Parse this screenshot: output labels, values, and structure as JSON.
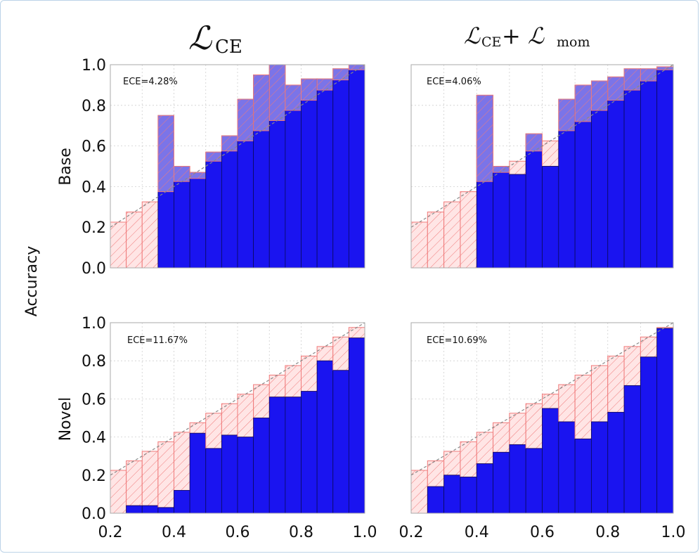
{
  "figure": {
    "ylabel": "Accuracy",
    "columns": [
      {
        "title_main": "ℒ",
        "title_sub": "CE",
        "title_tail": ""
      },
      {
        "title_main": "ℒ",
        "title_sub": "CE",
        "title_tail": " + ℒ",
        "title_sub2": "mom"
      }
    ],
    "rows": [
      "Base",
      "Novel"
    ],
    "colors": {
      "acc_fill": "#1a14f0",
      "gap_over": "#7b74e8",
      "gap_under": "#ffe5e5",
      "gap_stroke": "#f07a7a",
      "diag": "#888888",
      "grid": "#cfcfcf"
    }
  },
  "chart_data": [
    {
      "type": "bar",
      "title": "ℒCE",
      "row": "Base",
      "ece_label": "ECE=4.28%",
      "xlim": [
        0.2,
        1.0
      ],
      "ylim": [
        0.0,
        1.0
      ],
      "xticks": [
        "0.2",
        "0.4",
        "0.6",
        "0.8",
        "1.0"
      ],
      "yticks": [
        "0.0",
        "0.2",
        "0.4",
        "0.6",
        "0.8",
        "1.0"
      ],
      "bin_width": 0.05,
      "bin_starts": [
        0.2,
        0.25,
        0.3,
        0.35,
        0.4,
        0.45,
        0.5,
        0.55,
        0.6,
        0.65,
        0.7,
        0.75,
        0.8,
        0.85,
        0.9,
        0.95
      ],
      "accuracy": [
        0.0,
        0.0,
        0.0,
        0.75,
        0.5,
        0.47,
        0.57,
        0.65,
        0.83,
        0.95,
        1.0,
        0.9,
        0.93,
        0.93,
        0.98,
        1.0
      ],
      "confidence": [
        0.225,
        0.275,
        0.325,
        0.375,
        0.425,
        0.44,
        0.525,
        0.575,
        0.625,
        0.675,
        0.725,
        0.775,
        0.825,
        0.875,
        0.925,
        0.975
      ]
    },
    {
      "type": "bar",
      "title": "ℒCE + ℒmom",
      "row": "Base",
      "ece_label": "ECE=4.06%",
      "xlim": [
        0.2,
        1.0
      ],
      "ylim": [
        0.0,
        1.0
      ],
      "xticks": [
        "0.2",
        "0.4",
        "0.6",
        "0.8",
        "1.0"
      ],
      "yticks": [
        "0.0",
        "0.2",
        "0.4",
        "0.6",
        "0.8",
        "1.0"
      ],
      "bin_width": 0.05,
      "bin_starts": [
        0.2,
        0.25,
        0.3,
        0.35,
        0.4,
        0.45,
        0.5,
        0.55,
        0.6,
        0.65,
        0.7,
        0.75,
        0.8,
        0.85,
        0.9,
        0.95
      ],
      "accuracy": [
        0.0,
        0.0,
        0.0,
        0.0,
        0.85,
        0.5,
        0.46,
        0.66,
        0.5,
        0.83,
        0.9,
        0.92,
        0.94,
        0.98,
        0.98,
        0.99
      ],
      "confidence": [
        0.225,
        0.275,
        0.325,
        0.375,
        0.425,
        0.47,
        0.525,
        0.575,
        0.625,
        0.675,
        0.72,
        0.775,
        0.825,
        0.875,
        0.92,
        0.975
      ]
    },
    {
      "type": "bar",
      "title": "ℒCE",
      "row": "Novel",
      "ece_label": "ECE=11.67%",
      "xlim": [
        0.2,
        1.0
      ],
      "ylim": [
        0.0,
        1.0
      ],
      "xticks": [
        "0.2",
        "0.4",
        "0.6",
        "0.8",
        "1.0"
      ],
      "yticks": [
        "0.0",
        "0.2",
        "0.4",
        "0.6",
        "0.8",
        "1.0"
      ],
      "bin_width": 0.05,
      "bin_starts": [
        0.2,
        0.25,
        0.3,
        0.35,
        0.4,
        0.45,
        0.5,
        0.55,
        0.6,
        0.65,
        0.7,
        0.75,
        0.8,
        0.85,
        0.9,
        0.95
      ],
      "accuracy": [
        0.0,
        0.04,
        0.04,
        0.03,
        0.12,
        0.42,
        0.34,
        0.41,
        0.4,
        0.5,
        0.61,
        0.61,
        0.64,
        0.8,
        0.75,
        0.92
      ],
      "confidence": [
        0.225,
        0.275,
        0.325,
        0.375,
        0.425,
        0.475,
        0.525,
        0.575,
        0.625,
        0.675,
        0.725,
        0.775,
        0.825,
        0.875,
        0.925,
        0.975
      ]
    },
    {
      "type": "bar",
      "title": "ℒCE + ℒmom",
      "row": "Novel",
      "ece_label": "ECE=10.69%",
      "xlim": [
        0.2,
        1.0
      ],
      "ylim": [
        0.0,
        1.0
      ],
      "xticks": [
        "0.2",
        "0.4",
        "0.6",
        "0.8",
        "1.0"
      ],
      "yticks": [
        "0.0",
        "0.2",
        "0.4",
        "0.6",
        "0.8",
        "1.0"
      ],
      "bin_width": 0.05,
      "bin_starts": [
        0.2,
        0.25,
        0.3,
        0.35,
        0.4,
        0.45,
        0.5,
        0.55,
        0.6,
        0.65,
        0.7,
        0.75,
        0.8,
        0.85,
        0.9,
        0.95
      ],
      "accuracy": [
        0.0,
        0.14,
        0.2,
        0.19,
        0.26,
        0.32,
        0.36,
        0.34,
        0.55,
        0.48,
        0.39,
        0.48,
        0.53,
        0.67,
        0.82,
        0.97
      ],
      "confidence": [
        0.225,
        0.275,
        0.325,
        0.375,
        0.425,
        0.475,
        0.525,
        0.575,
        0.625,
        0.675,
        0.725,
        0.775,
        0.825,
        0.875,
        0.925,
        0.975
      ]
    }
  ]
}
